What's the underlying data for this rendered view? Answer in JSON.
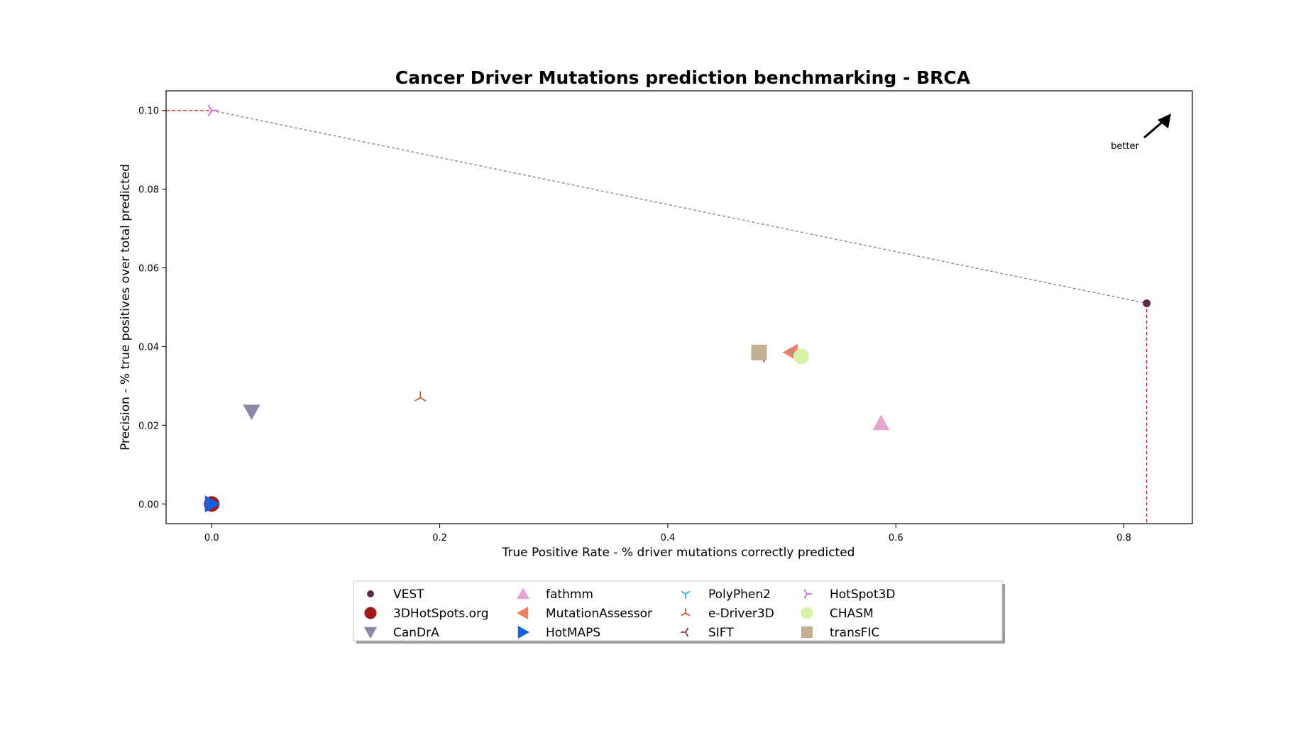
{
  "chart_data": {
    "type": "scatter",
    "title": "Cancer Driver Mutations prediction benchmarking - BRCA",
    "xlabel": "True Positive Rate - % driver mutations correctly predicted",
    "ylabel": "Precision - % true positives over total predicted",
    "xlim": [
      -0.04,
      0.86
    ],
    "ylim": [
      -0.005,
      0.105
    ],
    "xticks": [
      "0.0",
      "0.2",
      "0.4",
      "0.6",
      "0.8"
    ],
    "yticks": [
      "0.00",
      "0.02",
      "0.04",
      "0.06",
      "0.08",
      "0.10"
    ],
    "grid": false,
    "legend_position": "bottom-center",
    "annotation": "better",
    "pareto_front": [
      {
        "x": 0.0,
        "y": 0.1
      },
      {
        "x": 0.82,
        "y": 0.051
      }
    ],
    "series": [
      {
        "name": "VEST",
        "marker": "dot",
        "color": "#5e2a4a",
        "x": 0.82,
        "y": 0.051
      },
      {
        "name": "3DHotSpots.org",
        "marker": "circle",
        "color": "#a11a1a",
        "x": 0.0,
        "y": 0.0
      },
      {
        "name": "CanDrA",
        "marker": "triangle-down",
        "color": "#8a88aa",
        "x": 0.035,
        "y": 0.0235
      },
      {
        "name": "fathmm",
        "marker": "triangle-up",
        "color": "#e6a4d2",
        "x": 0.587,
        "y": 0.0205
      },
      {
        "name": "MutationAssessor",
        "marker": "triangle-left",
        "color": "#f0806a",
        "x": 0.508,
        "y": 0.0385
      },
      {
        "name": "HotMAPS",
        "marker": "triangle-right",
        "color": "#1560e0",
        "x": 0.0,
        "y": 0.0
      },
      {
        "name": "PolyPhen2",
        "marker": "tri-down",
        "color": "#22b8c8",
        "x": 0.512,
        "y": 0.038
      },
      {
        "name": "e-Driver3D",
        "marker": "tri-up",
        "color": "#cc4a22",
        "x": 0.183,
        "y": 0.027
      },
      {
        "name": "SIFT",
        "marker": "tri-left",
        "color": "#8a1a3a",
        "x": 0.482,
        "y": 0.0375
      },
      {
        "name": "HotSpot3D",
        "marker": "tri-right",
        "color": "#c05ad8",
        "x": 0.0,
        "y": 0.1
      },
      {
        "name": "CHASM",
        "marker": "circle",
        "color": "#d8f2a6",
        "x": 0.517,
        "y": 0.0375
      },
      {
        "name": "transFIC",
        "marker": "square",
        "color": "#bfb090",
        "x": 0.48,
        "y": 0.0385
      }
    ]
  }
}
